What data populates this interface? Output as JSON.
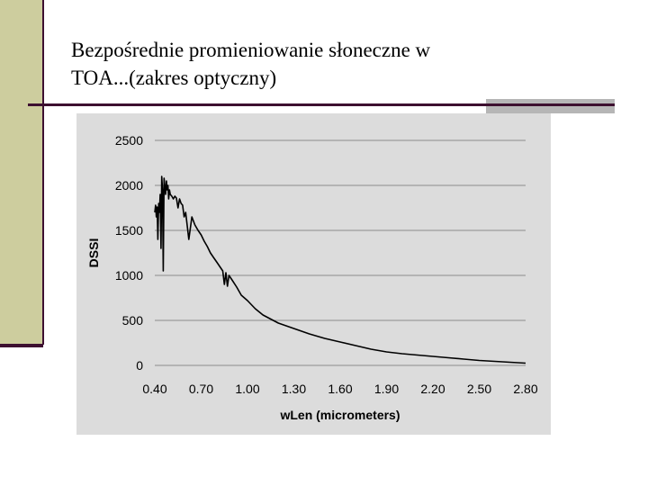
{
  "slide": {
    "title_line1": "Bezpośrednie promieniowanie słoneczne w",
    "title_line2": "TOA...(zakres optyczny)"
  },
  "colors": {
    "side_bar": "#cdcd9e",
    "accent_line": "#3d1030",
    "rule_block": "#b6b6b6",
    "plot_background": "#dcdcdc",
    "series": "#000000"
  },
  "chart_data": {
    "type": "line",
    "title": "",
    "xlabel": "wLen (micrometers)",
    "ylabel": "DSSI",
    "xlim": [
      0.4,
      2.8
    ],
    "ylim": [
      0,
      2500
    ],
    "x_ticks": [
      "0.40",
      "0.70",
      "1.00",
      "1.30",
      "1.60",
      "1.90",
      "2.20",
      "2.50",
      "2.80"
    ],
    "y_ticks": [
      "0",
      "500",
      "1000",
      "1500",
      "2000",
      "2500"
    ],
    "grid": "horizontal",
    "legend": "none",
    "series": [
      {
        "x": [
          0.4,
          0.405,
          0.41,
          0.415,
          0.42,
          0.425,
          0.43,
          0.435,
          0.44,
          0.445,
          0.45,
          0.455,
          0.46,
          0.465,
          0.47,
          0.475,
          0.48,
          0.485,
          0.49,
          0.495,
          0.5,
          0.51,
          0.52,
          0.53,
          0.54,
          0.55,
          0.56,
          0.57,
          0.58,
          0.59,
          0.6,
          0.62,
          0.64,
          0.66,
          0.68,
          0.7,
          0.72,
          0.74,
          0.76,
          0.78,
          0.8,
          0.82,
          0.84,
          0.85,
          0.86,
          0.87,
          0.88,
          0.9,
          0.93,
          0.96,
          1.0,
          1.05,
          1.1,
          1.2,
          1.3,
          1.4,
          1.5,
          1.6,
          1.7,
          1.8,
          1.9,
          2.0,
          2.1,
          2.2,
          2.3,
          2.4,
          2.5,
          2.6,
          2.7,
          2.8
        ],
        "values": [
          1700,
          1780,
          1650,
          1760,
          1400,
          1800,
          1700,
          1900,
          1300,
          2100,
          1950,
          1050,
          2080,
          1980,
          1900,
          2050,
          1950,
          2000,
          1850,
          1950,
          1900,
          1880,
          1850,
          1880,
          1860,
          1750,
          1850,
          1800,
          1780,
          1650,
          1700,
          1400,
          1650,
          1560,
          1500,
          1450,
          1380,
          1320,
          1250,
          1200,
          1150,
          1100,
          1050,
          900,
          1030,
          880,
          1000,
          950,
          870,
          780,
          720,
          630,
          560,
          470,
          410,
          350,
          300,
          260,
          220,
          180,
          150,
          130,
          115,
          100,
          85,
          70,
          55,
          45,
          35,
          25
        ]
      }
    ]
  }
}
